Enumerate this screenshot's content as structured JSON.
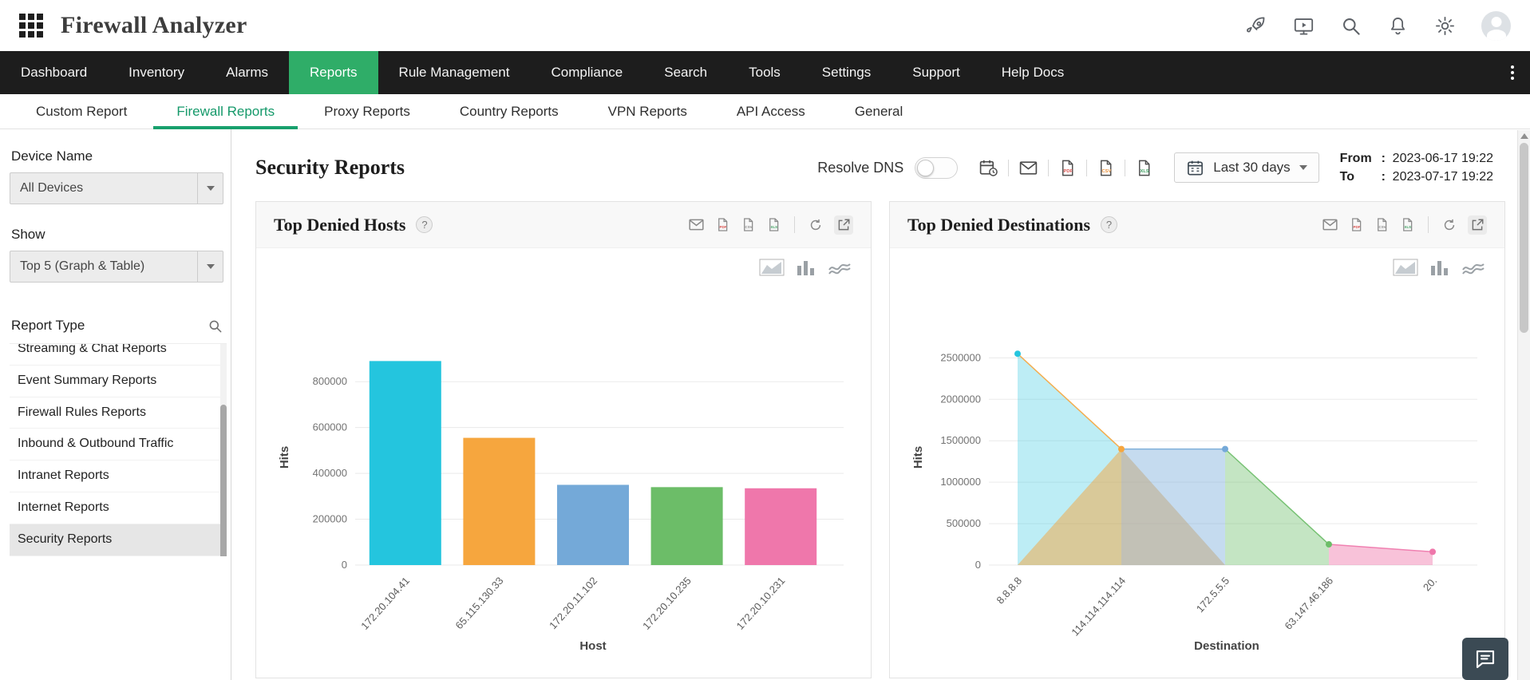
{
  "app": {
    "title": "Firewall Analyzer"
  },
  "nav": {
    "items": [
      {
        "label": "Dashboard",
        "active": false
      },
      {
        "label": "Inventory",
        "active": false
      },
      {
        "label": "Alarms",
        "active": false
      },
      {
        "label": "Reports",
        "active": true
      },
      {
        "label": "Rule Management",
        "active": false
      },
      {
        "label": "Compliance",
        "active": false
      },
      {
        "label": "Search",
        "active": false
      },
      {
        "label": "Tools",
        "active": false
      },
      {
        "label": "Settings",
        "active": false
      },
      {
        "label": "Support",
        "active": false
      },
      {
        "label": "Help Docs",
        "active": false
      }
    ]
  },
  "subnav": {
    "tabs": [
      {
        "label": "Custom Report",
        "active": false
      },
      {
        "label": "Firewall Reports",
        "active": true
      },
      {
        "label": "Proxy Reports",
        "active": false
      },
      {
        "label": "Country Reports",
        "active": false
      },
      {
        "label": "VPN Reports",
        "active": false
      },
      {
        "label": "API Access",
        "active": false
      },
      {
        "label": "General",
        "active": false
      }
    ]
  },
  "sidebar": {
    "device_label": "Device Name",
    "device_value": "All Devices",
    "show_label": "Show",
    "show_value": "Top 5 (Graph & Table)",
    "report_type_label": "Report Type",
    "report_types": [
      {
        "label": "Streaming & Chat Reports",
        "selected": false
      },
      {
        "label": "Event Summary Reports",
        "selected": false
      },
      {
        "label": "Firewall Rules Reports",
        "selected": false
      },
      {
        "label": "Inbound & Outbound Traffic",
        "selected": false
      },
      {
        "label": "Intranet Reports",
        "selected": false
      },
      {
        "label": "Internet Reports",
        "selected": false
      },
      {
        "label": "Security Reports",
        "selected": true
      }
    ]
  },
  "toolbar": {
    "page_title": "Security Reports",
    "resolve_dns_label": "Resolve DNS",
    "resolve_dns_on": false,
    "date_range": "Last 30 days",
    "from_label": "From",
    "to_label": "To",
    "colon": ":",
    "from_value": "2023-06-17 19:22",
    "to_value": "2023-07-17 19:22"
  },
  "cards": {
    "help_badge": "?"
  },
  "icon_labels": {
    "pdf": "PDF",
    "csv": "CSV",
    "xls": "XLS"
  },
  "icons": {
    "apps_grid": "grid-of-squares",
    "rocket": "rocket",
    "demo": "screen-with-play",
    "search": "magnifier",
    "notifications": "bell",
    "settings": "gear",
    "user": "avatar-circle",
    "kebab": "vertical-dots",
    "schedule": "calendar-clock",
    "email": "envelope",
    "refresh": "circular-arrow",
    "expand": "open-in-new",
    "help": "question-circle",
    "area_chart": "framed-area-chart",
    "bar_chart": "mini-bars",
    "line_chart": "waves",
    "calendar": "calendar-grid",
    "chat": "speech-bubble"
  },
  "colors": {
    "accent_green": "#2fad68",
    "tab_green": "#18a06d",
    "nav_bg": "#1d1d1d",
    "series": [
      "#24c5de",
      "#f6a63e",
      "#74a9d8",
      "#6cbd68",
      "#ef77ab"
    ]
  },
  "chart_data": [
    {
      "type": "bar",
      "title": "Top Denied Hosts",
      "categories": [
        "172.20.104.41",
        "65.115.130.33",
        "172.20.11.102",
        "172.20.10.235",
        "172.20.10.231"
      ],
      "values": [
        890000,
        555000,
        350000,
        340000,
        335000
      ],
      "colors": [
        "#24c5de",
        "#f6a63e",
        "#74a9d8",
        "#6cbd68",
        "#ef77ab"
      ],
      "xlabel": "Host",
      "ylabel": "Hits",
      "yticks": [
        0,
        200000,
        400000,
        600000,
        800000
      ],
      "ylim": [
        0,
        940000
      ],
      "grid": true,
      "legend": false
    },
    {
      "type": "area",
      "title": "Top Denied Destinations",
      "categories": [
        "8.8.8.8",
        "114.114.114.114",
        "172.5.5.5",
        "63.147.46.186",
        "20."
      ],
      "values": [
        2550000,
        1400000,
        1400000,
        250000,
        160000
      ],
      "colors": [
        "#24c5de",
        "#f6a63e",
        "#74a9d8",
        "#6cbd68",
        "#ef77ab"
      ],
      "xlabel": "Destination",
      "ylabel": "Hits",
      "yticks": [
        0,
        500000,
        1000000,
        1500000,
        2000000,
        2500000
      ],
      "ylim": [
        0,
        2600000
      ],
      "grid": true,
      "legend": false
    }
  ]
}
